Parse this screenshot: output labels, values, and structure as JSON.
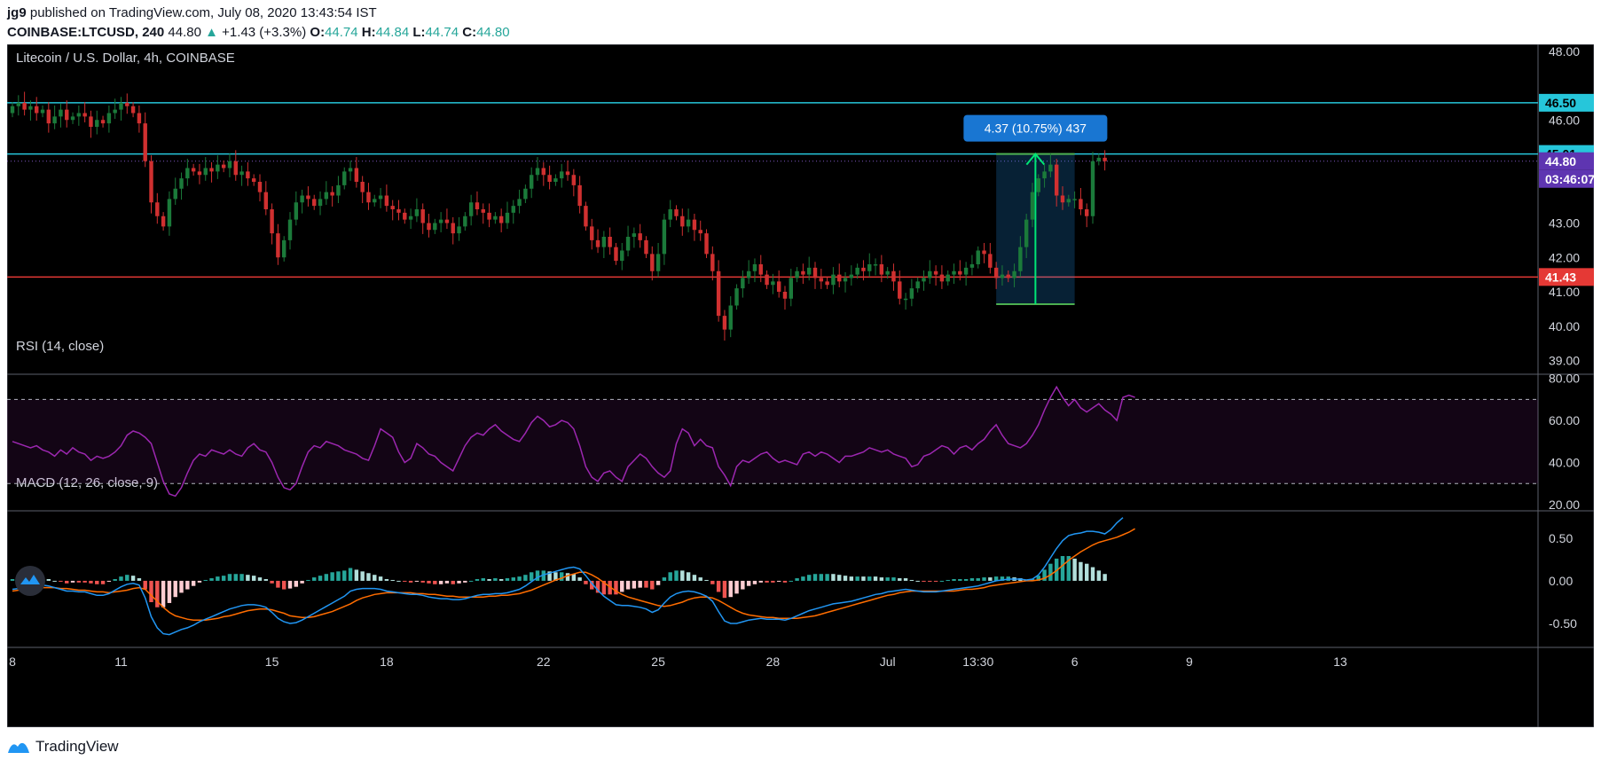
{
  "header": {
    "user": "jg9",
    "published_text": "published on TradingView.com, July 08, 2020 13:43:54 IST",
    "symbol": "COINBASE:LTCUSD, 240",
    "last": "44.80",
    "change": "+1.43 (+3.3%)",
    "o_label": "O:",
    "o": "44.74",
    "h_label": "H:",
    "h": "44.84",
    "l_label": "L:",
    "l": "44.74",
    "c_label": "C:",
    "c": "44.80"
  },
  "footer": {
    "brand": "TradingView"
  },
  "colors": {
    "background": "#000000",
    "up": "#26a69a",
    "up_candle": "#1b7a3a",
    "down_candle": "#d03030",
    "resistance": "#26c6da",
    "support": "#e53935",
    "rsi": "#9c27b0",
    "macd": "#2196f3",
    "signal": "#ff6d00",
    "price_tag": "#5e35b1",
    "measure": "#1976d2"
  },
  "chart_data": {
    "type": "candlestick",
    "title": "Litecoin / U.S. Dollar, 4h, COINBASE",
    "x_ticks": [
      "8",
      "11",
      "15",
      "18",
      "22",
      "25",
      "28",
      "Jul",
      "13:30",
      "6",
      "9",
      "13"
    ],
    "price_axis": {
      "ylim": [
        38.6,
        48.2
      ],
      "ticks": [
        "48.00",
        "46.00",
        "45.00",
        "43.00",
        "42.00",
        "41.00",
        "40.00",
        "39.00"
      ]
    },
    "resistance_levels": [
      46.5,
      45.01
    ],
    "support_level": 41.43,
    "last_price": 44.8,
    "price_labels": [
      {
        "text": "46.50",
        "kind": "resistance"
      },
      {
        "text": "45.01",
        "kind": "resistance"
      },
      {
        "text": "44.80",
        "kind": "last"
      },
      {
        "text": "03:46:07",
        "kind": "countdown"
      },
      {
        "text": "41.43",
        "kind": "support"
      }
    ],
    "measure": {
      "label": "4.37 (10.75%) 437",
      "from": 40.64,
      "to": 45.01,
      "start_bar": 163,
      "end_bar": 176
    },
    "close": [
      46.4,
      46.5,
      46.3,
      46.4,
      46.2,
      46.3,
      45.9,
      46.1,
      46.3,
      46.0,
      46.1,
      46.2,
      46.1,
      45.8,
      46.0,
      45.9,
      46.2,
      46.3,
      46.5,
      46.4,
      46.2,
      45.9,
      44.8,
      43.6,
      43.2,
      42.9,
      43.7,
      44.0,
      44.3,
      44.6,
      44.5,
      44.4,
      44.6,
      44.5,
      44.7,
      44.6,
      44.8,
      44.4,
      44.5,
      44.3,
      44.2,
      43.9,
      43.4,
      42.7,
      42.0,
      42.5,
      43.1,
      43.6,
      43.8,
      43.7,
      43.5,
      43.7,
      43.9,
      43.8,
      44.1,
      44.5,
      44.6,
      44.2,
      43.9,
      43.6,
      43.7,
      43.8,
      43.5,
      43.4,
      43.3,
      43.1,
      43.2,
      43.4,
      43.0,
      42.8,
      43.0,
      43.1,
      43.0,
      42.7,
      42.9,
      43.2,
      43.6,
      43.4,
      43.3,
      43.1,
      43.2,
      43.0,
      43.3,
      43.5,
      43.7,
      44.0,
      44.4,
      44.6,
      44.4,
      44.2,
      44.3,
      44.5,
      44.4,
      44.1,
      43.5,
      42.9,
      42.5,
      42.3,
      42.6,
      42.3,
      41.9,
      42.2,
      42.6,
      42.7,
      42.5,
      42.1,
      41.6,
      42.1,
      43.1,
      43.4,
      43.2,
      42.9,
      43.1,
      42.8,
      42.7,
      42.1,
      41.6,
      40.3,
      39.9,
      40.6,
      41.1,
      41.4,
      41.6,
      41.8,
      41.5,
      41.2,
      41.3,
      41.0,
      40.8,
      41.4,
      41.6,
      41.5,
      41.7,
      41.4,
      41.3,
      41.2,
      41.5,
      41.3,
      41.4,
      41.5,
      41.7,
      41.6,
      41.8,
      41.8,
      41.5,
      41.6,
      41.3,
      40.8,
      40.8,
      41.1,
      41.3,
      41.4,
      41.6,
      41.5,
      41.3,
      41.5,
      41.6,
      41.5,
      41.7,
      41.8,
      42.2,
      42.1,
      41.7,
      41.4,
      41.5,
      41.4,
      41.6,
      42.3,
      43.1,
      43.9,
      44.3,
      44.5,
      44.7,
      43.8,
      43.6,
      43.7,
      43.7,
      43.4,
      43.2,
      44.8,
      44.9,
      44.8
    ]
  },
  "rsi_pane": {
    "title": "RSI (14, close)",
    "ylim": [
      17,
      82
    ],
    "ticks": [
      "80.00",
      "60.00",
      "40.00",
      "20.00"
    ],
    "upper_band": 70,
    "lower_band": 30,
    "values": [
      50,
      49,
      48,
      47,
      48,
      46,
      45,
      43,
      46,
      44,
      47,
      45,
      44,
      41,
      43,
      42,
      43,
      45,
      48,
      53,
      55,
      54,
      52,
      49,
      40,
      31,
      25,
      24,
      28,
      35,
      41,
      44,
      43,
      46,
      45,
      44,
      46,
      44,
      43,
      47,
      49,
      46,
      45,
      40,
      33,
      28,
      27,
      30,
      38,
      45,
      48,
      47,
      50,
      49,
      48,
      46,
      45,
      44,
      42,
      41,
      48,
      56,
      54,
      52,
      45,
      40,
      42,
      49,
      47,
      44,
      43,
      40,
      38,
      36,
      42,
      48,
      52,
      54,
      53,
      56,
      58,
      55,
      53,
      51,
      50,
      54,
      59,
      62,
      60,
      57,
      58,
      60,
      59,
      56,
      48,
      38,
      33,
      31,
      35,
      36,
      33,
      31,
      38,
      41,
      44,
      42,
      38,
      35,
      33,
      36,
      49,
      56,
      54,
      48,
      51,
      48,
      47,
      38,
      34,
      29,
      38,
      41,
      40,
      42,
      44,
      45,
      42,
      40,
      41,
      40,
      39,
      44,
      45,
      43,
      45,
      44,
      42,
      40,
      43,
      43,
      44,
      45,
      47,
      46,
      45,
      46,
      44,
      43,
      42,
      38,
      39,
      43,
      44,
      46,
      48,
      47,
      44,
      47,
      48,
      46,
      49,
      51,
      55,
      58,
      53,
      49,
      48,
      47,
      49,
      53,
      58,
      65,
      71,
      76,
      71,
      67,
      70,
      66,
      64,
      66,
      68,
      65,
      63,
      60,
      71,
      72,
      71
    ]
  },
  "macd_pane": {
    "title": "MACD (12, 26, close, 9)",
    "ylim": [
      -0.78,
      0.82
    ],
    "ticks": [
      "0.50",
      "0.00",
      "-0.50"
    ],
    "macd": [
      -0.1,
      -0.09,
      -0.08,
      -0.07,
      -0.06,
      -0.05,
      -0.06,
      -0.08,
      -0.1,
      -0.12,
      -0.12,
      -0.13,
      -0.13,
      -0.15,
      -0.17,
      -0.17,
      -0.15,
      -0.11,
      -0.07,
      -0.04,
      -0.03,
      -0.05,
      -0.2,
      -0.42,
      -0.55,
      -0.62,
      -0.63,
      -0.6,
      -0.57,
      -0.55,
      -0.52,
      -0.48,
      -0.45,
      -0.42,
      -0.39,
      -0.36,
      -0.33,
      -0.31,
      -0.29,
      -0.28,
      -0.28,
      -0.29,
      -0.31,
      -0.37,
      -0.44,
      -0.48,
      -0.5,
      -0.49,
      -0.46,
      -0.42,
      -0.38,
      -0.34,
      -0.3,
      -0.26,
      -0.22,
      -0.18,
      -0.12,
      -0.1,
      -0.09,
      -0.09,
      -0.09,
      -0.1,
      -0.12,
      -0.13,
      -0.14,
      -0.15,
      -0.16,
      -0.16,
      -0.17,
      -0.19,
      -0.2,
      -0.21,
      -0.21,
      -0.22,
      -0.22,
      -0.21,
      -0.19,
      -0.17,
      -0.16,
      -0.16,
      -0.15,
      -0.15,
      -0.14,
      -0.12,
      -0.1,
      -0.06,
      -0.01,
      0.04,
      0.07,
      0.09,
      0.11,
      0.13,
      0.15,
      0.16,
      0.14,
      0.06,
      -0.03,
      -0.11,
      -0.18,
      -0.23,
      -0.28,
      -0.29,
      -0.29,
      -0.3,
      -0.31,
      -0.33,
      -0.37,
      -0.34,
      -0.26,
      -0.19,
      -0.15,
      -0.13,
      -0.12,
      -0.13,
      -0.15,
      -0.18,
      -0.24,
      -0.36,
      -0.47,
      -0.5,
      -0.5,
      -0.48,
      -0.46,
      -0.45,
      -0.44,
      -0.45,
      -0.45,
      -0.45,
      -0.46,
      -0.44,
      -0.41,
      -0.38,
      -0.35,
      -0.33,
      -0.31,
      -0.29,
      -0.27,
      -0.26,
      -0.25,
      -0.24,
      -0.22,
      -0.2,
      -0.18,
      -0.16,
      -0.15,
      -0.13,
      -0.12,
      -0.11,
      -0.1,
      -0.11,
      -0.12,
      -0.13,
      -0.13,
      -0.13,
      -0.12,
      -0.11,
      -0.1,
      -0.09,
      -0.08,
      -0.07,
      -0.06,
      -0.04,
      -0.02,
      0.0,
      0.01,
      0.02,
      0.02,
      0.02,
      0.01,
      0.02,
      0.07,
      0.16,
      0.27,
      0.38,
      0.47,
      0.53,
      0.55,
      0.56,
      0.58,
      0.58,
      0.57,
      0.55,
      0.6,
      0.68,
      0.74
    ],
    "signal": [
      -0.12,
      -0.11,
      -0.1,
      -0.09,
      -0.09,
      -0.08,
      -0.08,
      -0.08,
      -0.09,
      -0.09,
      -0.1,
      -0.11,
      -0.11,
      -0.12,
      -0.13,
      -0.13,
      -0.14,
      -0.13,
      -0.12,
      -0.11,
      -0.09,
      -0.08,
      -0.1,
      -0.17,
      -0.24,
      -0.31,
      -0.37,
      -0.41,
      -0.43,
      -0.45,
      -0.46,
      -0.46,
      -0.46,
      -0.45,
      -0.44,
      -0.42,
      -0.41,
      -0.39,
      -0.37,
      -0.35,
      -0.34,
      -0.33,
      -0.33,
      -0.34,
      -0.36,
      -0.38,
      -0.41,
      -0.42,
      -0.43,
      -0.43,
      -0.42,
      -0.4,
      -0.38,
      -0.36,
      -0.33,
      -0.3,
      -0.27,
      -0.23,
      -0.2,
      -0.18,
      -0.16,
      -0.15,
      -0.14,
      -0.14,
      -0.14,
      -0.14,
      -0.14,
      -0.15,
      -0.15,
      -0.16,
      -0.16,
      -0.17,
      -0.18,
      -0.18,
      -0.19,
      -0.19,
      -0.19,
      -0.19,
      -0.19,
      -0.18,
      -0.18,
      -0.17,
      -0.17,
      -0.16,
      -0.15,
      -0.13,
      -0.11,
      -0.08,
      -0.05,
      -0.02,
      0.01,
      0.03,
      0.06,
      0.08,
      0.1,
      0.1,
      0.07,
      0.03,
      -0.02,
      -0.07,
      -0.12,
      -0.16,
      -0.19,
      -0.21,
      -0.23,
      -0.25,
      -0.27,
      -0.29,
      -0.3,
      -0.29,
      -0.27,
      -0.25,
      -0.22,
      -0.2,
      -0.19,
      -0.19,
      -0.2,
      -0.23,
      -0.27,
      -0.31,
      -0.35,
      -0.38,
      -0.4,
      -0.41,
      -0.42,
      -0.43,
      -0.43,
      -0.44,
      -0.44,
      -0.44,
      -0.44,
      -0.43,
      -0.42,
      -0.41,
      -0.39,
      -0.37,
      -0.35,
      -0.33,
      -0.31,
      -0.29,
      -0.27,
      -0.25,
      -0.23,
      -0.21,
      -0.19,
      -0.17,
      -0.16,
      -0.14,
      -0.13,
      -0.12,
      -0.12,
      -0.12,
      -0.12,
      -0.12,
      -0.12,
      -0.12,
      -0.12,
      -0.11,
      -0.1,
      -0.1,
      -0.09,
      -0.08,
      -0.06,
      -0.05,
      -0.04,
      -0.03,
      -0.02,
      -0.01,
      -0.0,
      0.0,
      0.01,
      0.03,
      0.07,
      0.12,
      0.18,
      0.24,
      0.29,
      0.34,
      0.38,
      0.42,
      0.45,
      0.47,
      0.49,
      0.51,
      0.54,
      0.57,
      0.61
    ]
  }
}
